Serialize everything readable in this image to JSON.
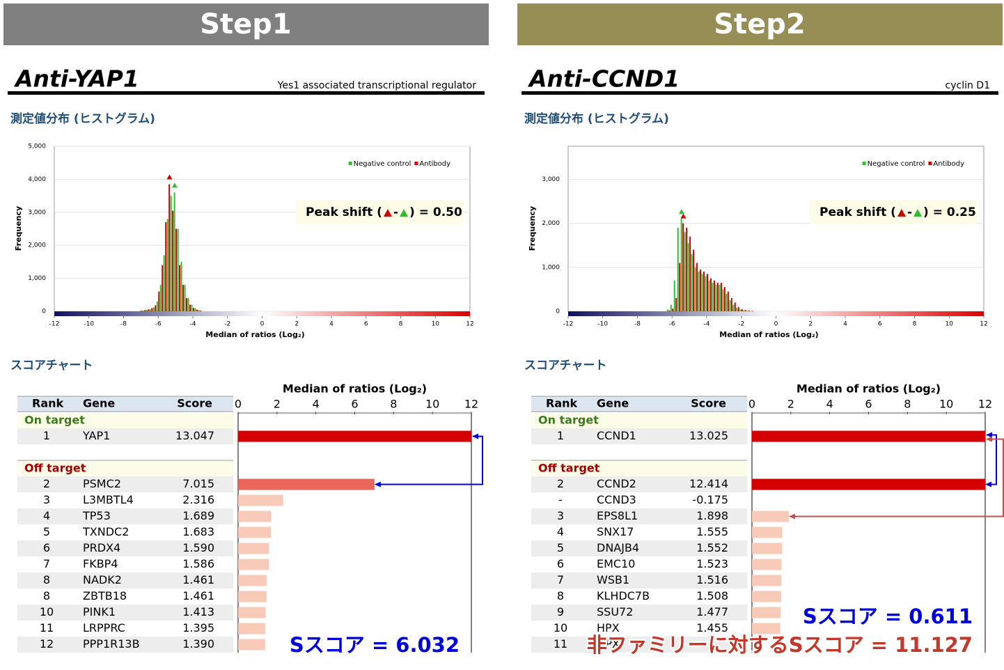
{
  "panels": [
    {
      "step": "Step1",
      "header_color": "#808080",
      "antibody": "Anti-YAP1",
      "description": "Yes1 associated transcriptional regulator",
      "hist_heading": "測定値分布 (ヒストグラム)",
      "histogram": {
        "type": "bar",
        "xlabel": "Median of ratios (Log₂)",
        "ylabel": "Frequency",
        "x": [
          -7.0,
          -6.8,
          -6.6,
          -6.4,
          -6.2,
          -6.0,
          -5.8,
          -5.6,
          -5.4,
          -5.2,
          -5.0,
          -4.8,
          -4.6,
          -4.4,
          -4.2,
          -4.0,
          -3.8,
          -3.6
        ],
        "series": [
          {
            "name": "Negative control",
            "color": "#33bb33",
            "values": [
              10,
              20,
              40,
              60,
              120,
              300,
              800,
              1700,
              2800,
              3500,
              3600,
              2500,
              1500,
              800,
              400,
              200,
              100,
              40
            ]
          },
          {
            "name": "Antibody",
            "color": "#cc0000",
            "values": [
              20,
              40,
              60,
              100,
              180,
              600,
              1400,
              2700,
              3850,
              3050,
              2500,
              1400,
              800,
              400,
              200,
              100,
              50,
              20
            ]
          }
        ],
        "xlim": [
          -12,
          12
        ],
        "xticks": [
          -12,
          -10,
          -8,
          -6,
          -4,
          -2,
          0,
          2,
          4,
          6,
          8,
          10,
          12
        ],
        "ylim": [
          0,
          5000
        ],
        "yticks": [
          0,
          {
            "value": 1000,
            "label": "1,000"
          },
          {
            "value": 2000,
            "label": "2,000"
          },
          {
            "value": 3000,
            "label": "3,000"
          },
          {
            "value": 4000,
            "label": "4,000"
          },
          {
            "value": 5000,
            "label": "5,000"
          }
        ],
        "peak_shift": [
          "Peak shift (",
          "-",
          ") = 0.50"
        ]
      },
      "score_heading": "スコアチャート",
      "score_chart": {
        "type": "bar",
        "xlabel": "Median of ratios (Log₂)",
        "xlim": [
          0,
          12
        ],
        "xticks": [
          0,
          2,
          4,
          6,
          8,
          10,
          12
        ],
        "columns": [
          "Rank",
          "Gene",
          "Score"
        ],
        "sections": [
          {
            "name": "On target",
            "rows": [
              {
                "rank": "1",
                "gene": "YAP1",
                "score": 13.047,
                "color": "#d40000"
              }
            ]
          },
          {
            "name": "Off target",
            "rows": [
              {
                "rank": "2",
                "gene": "PSMC2",
                "score": 7.015,
                "color": "#e8665a"
              },
              {
                "rank": "3",
                "gene": "L3MBTL4",
                "score": 2.316,
                "color": "#f8cbb8"
              },
              {
                "rank": "4",
                "gene": "TP53",
                "score": 1.689,
                "color": "#f8cbb8"
              },
              {
                "rank": "5",
                "gene": "TXNDC2",
                "score": 1.683,
                "color": "#f8cbb8"
              },
              {
                "rank": "6",
                "gene": "PRDX4",
                "score": 1.59,
                "score_label": "1.590",
                "color": "#f8cbb8"
              },
              {
                "rank": "7",
                "gene": "FKBP4",
                "score": 1.586,
                "color": "#f8cbb8"
              },
              {
                "rank": "8",
                "gene": "NADK2",
                "score": 1.461,
                "color": "#f8cbb8"
              },
              {
                "rank": "8",
                "gene": "ZBTB18",
                "score": 1.461,
                "color": "#f8cbb8"
              },
              {
                "rank": "10",
                "gene": "PINK1",
                "score": 1.413,
                "color": "#f8cbb8"
              },
              {
                "rank": "11",
                "gene": "LRPPRC",
                "score": 1.395,
                "color": "#f8cbb8"
              },
              {
                "rank": "12",
                "gene": "PPP1R13B",
                "score": 1.39,
                "score_label": "1.390",
                "color": "#f8cbb8"
              }
            ]
          }
        ]
      },
      "s_scores": [
        {
          "text": "Sスコア = 6.032",
          "color": "#0000dd"
        }
      ]
    },
    {
      "step": "Step2",
      "header_color": "#978e55",
      "antibody": "Anti-CCND1",
      "description": "cyclin D1",
      "hist_heading": "測定値分布 (ヒストグラム)",
      "histogram": {
        "type": "bar",
        "xlabel": "Median of ratios (Log₂)",
        "ylabel": "Frequency",
        "x": [
          -6.2,
          -6.0,
          -5.8,
          -5.6,
          -5.4,
          -5.2,
          -5.0,
          -4.8,
          -4.6,
          -4.4,
          -4.2,
          -4.0,
          -3.8,
          -3.6,
          -3.4,
          -3.2,
          -3.0,
          -2.8,
          -2.6,
          -2.4,
          -2.2,
          -2.0,
          -1.8,
          -1.6,
          -1.4
        ],
        "series": [
          {
            "name": "Negative control",
            "color": "#33bb33",
            "values": [
              40,
              150,
              700,
              1900,
              2100,
              1800,
              1550,
              1300,
              1000,
              900,
              850,
              800,
              700,
              650,
              600,
              600,
              500,
              400,
              250,
              150,
              80,
              40,
              20,
              10,
              5
            ]
          },
          {
            "name": "Antibody",
            "color": "#cc0000",
            "values": [
              20,
              60,
              300,
              1100,
              2000,
              1900,
              1700,
              1400,
              1100,
              950,
              900,
              850,
              750,
              700,
              650,
              650,
              550,
              450,
              300,
              200,
              100,
              50,
              30,
              20,
              10
            ]
          }
        ],
        "xlim": [
          -12,
          12
        ],
        "xticks": [
          -12,
          -10,
          -8,
          -6,
          -4,
          -2,
          0,
          2,
          4,
          6,
          8,
          10,
          12
        ],
        "ylim": [
          0,
          3750
        ],
        "yticks": [
          0,
          {
            "value": 1000,
            "label": "1,000"
          },
          {
            "value": 2000,
            "label": "2,000"
          },
          {
            "value": 3000,
            "label": "3,000"
          }
        ],
        "peak_shift": [
          "Peak shift (",
          "-",
          ") = 0.25"
        ]
      },
      "score_heading": "スコアチャート",
      "score_chart": {
        "type": "bar",
        "xlabel": "Median of ratios (Log₂)",
        "xlim": [
          0,
          12
        ],
        "xticks": [
          0,
          2,
          4,
          6,
          8,
          10,
          12
        ],
        "columns": [
          "Rank",
          "Gene",
          "Score"
        ],
        "sections": [
          {
            "name": "On target",
            "rows": [
              {
                "rank": "1",
                "gene": "CCND1",
                "score": 13.025,
                "color": "#d40000"
              }
            ]
          },
          {
            "name": "Off target",
            "rows": [
              {
                "rank": "2",
                "gene": "CCND2",
                "score": 12.414,
                "color": "#d40000"
              },
              {
                "rank": "-",
                "gene": "CCND3",
                "score": -0.175,
                "color": "#f8cbb8"
              },
              {
                "rank": "3",
                "gene": "EPS8L1",
                "score": 1.898,
                "color": "#f8cbb8"
              },
              {
                "rank": "4",
                "gene": "SNX17",
                "score": 1.555,
                "color": "#f8cbb8"
              },
              {
                "rank": "5",
                "gene": "DNAJB4",
                "score": 1.552,
                "color": "#f8cbb8"
              },
              {
                "rank": "6",
                "gene": "EMC10",
                "score": 1.523,
                "color": "#f8cbb8"
              },
              {
                "rank": "7",
                "gene": "WSB1",
                "score": 1.516,
                "color": "#f8cbb8"
              },
              {
                "rank": "8",
                "gene": "KLHDC7B",
                "score": 1.508,
                "color": "#f8cbb8"
              },
              {
                "rank": "9",
                "gene": "SSU72",
                "score": 1.477,
                "color": "#f8cbb8"
              },
              {
                "rank": "10",
                "gene": "HPX",
                "score": 1.455,
                "color": "#f8cbb8"
              },
              {
                "rank": "11",
                "gene": "GPX",
                "color": "#f8cbb8"
              }
            ]
          }
        ]
      },
      "s_scores": [
        {
          "text": "Sスコア = 0.611",
          "color": "#0000dd"
        },
        {
          "text": "非ファミリーに対するSスコア = 11.127",
          "color": "#c0392b"
        }
      ]
    }
  ]
}
